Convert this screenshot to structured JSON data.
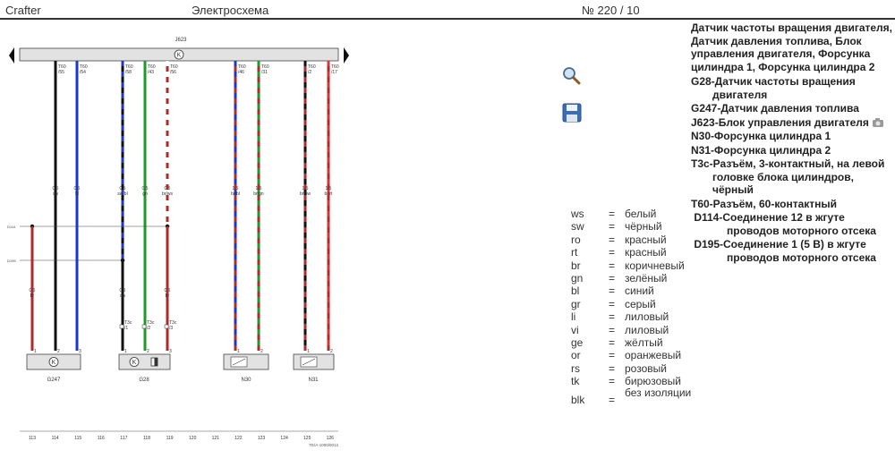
{
  "header": {
    "model": "Crafter",
    "title": "Электросхема",
    "page": "№ 220 / 10"
  },
  "tools": {
    "zoom": "magnifier-icon",
    "save": "floppy-disk-icon",
    "camera": "camera-icon"
  },
  "diagram": {
    "ecu_label": "J623",
    "wires": [
      {
        "conn": "T60",
        "pin": "/55",
        "gauge": "0.5",
        "color": "sw",
        "c1": "#111111",
        "c2": null
      },
      {
        "conn": "T60",
        "pin": "/54",
        "gauge": "0.5",
        "color": "bl",
        "c1": "#1d35c8",
        "c2": null
      },
      {
        "conn": "T60",
        "pin": "/58",
        "gauge": "0.5",
        "color": "sw/bl",
        "c1": "#111111",
        "c2": "#1d35c8"
      },
      {
        "conn": "T60",
        "pin": "/43",
        "gauge": "0.5",
        "color": "gn",
        "c1": "#1e9a2a",
        "c2": null
      },
      {
        "conn": "T60",
        "pin": "/56",
        "gauge": "0.5",
        "color": "br/ws",
        "c1": "#b02a2a",
        "c2": "#ffffff"
      },
      {
        "conn": "T60",
        "pin": "/46",
        "gauge": "1.5",
        "color": "br/bl",
        "c1": "#b02a2a",
        "c2": "#1d35c8"
      },
      {
        "conn": "T60",
        "pin": "/31",
        "gauge": "1.5",
        "color": "br/gn",
        "c1": "#b02a2a",
        "c2": "#1e9a2a"
      },
      {
        "conn": "T60",
        "pin": "/2",
        "gauge": "1.5",
        "color": "br/sw",
        "c1": "#b02a2a",
        "c2": "#111111"
      },
      {
        "conn": "T60",
        "pin": "/17",
        "gauge": "1.5",
        "color": "br/rt",
        "c1": "#b02a2a",
        "c2": "#e03030"
      }
    ],
    "bus_labels": [
      "D114",
      "D195"
    ],
    "lower_wires": [
      {
        "gauge": "0.5",
        "color": "br"
      },
      {
        "gauge": "0.5",
        "color": "sw"
      },
      {
        "gauge": "0.5",
        "color": "br"
      }
    ],
    "connector_label": "T3c",
    "connector_pins": [
      "/1",
      "/2",
      "/3"
    ],
    "bottom_pins": [
      "1",
      "2",
      "3",
      "1",
      "2",
      "3",
      "1",
      "2",
      "1",
      "2"
    ],
    "components": [
      "G247",
      "G28",
      "N30",
      "N31"
    ],
    "ruler": [
      "113",
      "114",
      "115",
      "116",
      "117",
      "118",
      "119",
      "120",
      "121",
      "122",
      "123",
      "124",
      "125",
      "126"
    ],
    "footnote": "ТЕ/А-1000/0012"
  },
  "legend": [
    {
      "code": "ws",
      "eq": "=",
      "name": "белый"
    },
    {
      "code": "sw",
      "eq": "=",
      "name": "чёрный"
    },
    {
      "code": "ro",
      "eq": "=",
      "name": "красный"
    },
    {
      "code": "rt",
      "eq": "=",
      "name": "красный"
    },
    {
      "code": "br",
      "eq": "=",
      "name": "коричневый"
    },
    {
      "code": "gn",
      "eq": "=",
      "name": "зелёный"
    },
    {
      "code": "bl",
      "eq": "=",
      "name": "синий"
    },
    {
      "code": "gr",
      "eq": "=",
      "name": "серый"
    },
    {
      "code": "li",
      "eq": "=",
      "name": "лиловый"
    },
    {
      "code": "vi",
      "eq": "=",
      "name": "лиловый"
    },
    {
      "code": "ge",
      "eq": "=",
      "name": "жёлтый"
    },
    {
      "code": "or",
      "eq": "=",
      "name": "оранжевый"
    },
    {
      "code": "rs",
      "eq": "=",
      "name": "розовый"
    },
    {
      "code": "tk",
      "eq": "=",
      "name": "бирюзовый"
    },
    {
      "code": "blk",
      "eq": "=",
      "name": "без изоляции"
    }
  ],
  "components_list": {
    "title": "Датчик частоты вращения двигателя, Датчик давления топлива, Блок управления двигателя, Форсунка цилиндра 1, Форсунка цилиндра 2",
    "items": [
      {
        "main": "G28-Датчик частоты вращения",
        "cont": "двигателя"
      },
      {
        "main": "G247-Датчик давления топлива",
        "cont": ""
      },
      {
        "main": "J623-Блок управления двигателя",
        "cont": ""
      },
      {
        "main": "N30-Форсунка цилиндра 1",
        "cont": ""
      },
      {
        "main": "N31-Форсунка цилиндра 2",
        "cont": ""
      },
      {
        "main": "T3c-Разъём, 3-контактный, на левой",
        "cont": "головке блока цилиндров, чёрный"
      },
      {
        "main": "T60-Разъём, 60-контактный",
        "cont": ""
      },
      {
        "main": " D114-Соединение 12 в жгуте",
        "cont": "проводов моторного отсека"
      },
      {
        "main": " D195-Соединение 1 (5 В) в жгуте",
        "cont": "проводов моторного отсека"
      }
    ]
  }
}
